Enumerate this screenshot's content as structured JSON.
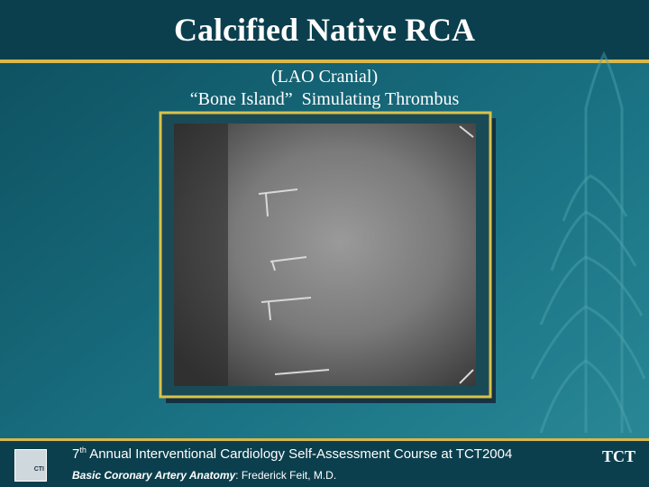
{
  "title": "Calcified Native RCA",
  "subtitle": [
    "(LAO Cranial)",
    "“Bone Island”  Simulating Thrombus"
  ],
  "footer": {
    "course": {
      "number": "7",
      "suffix": "th",
      "text": " Annual Interventional Cardiology Self-Assessment Course at TCT2004"
    },
    "topic": "Basic Coronary Artery Anatomy",
    "author": ": Frederick Feit, M.D."
  },
  "logos": {
    "left": "CTI",
    "right": "TCT"
  }
}
